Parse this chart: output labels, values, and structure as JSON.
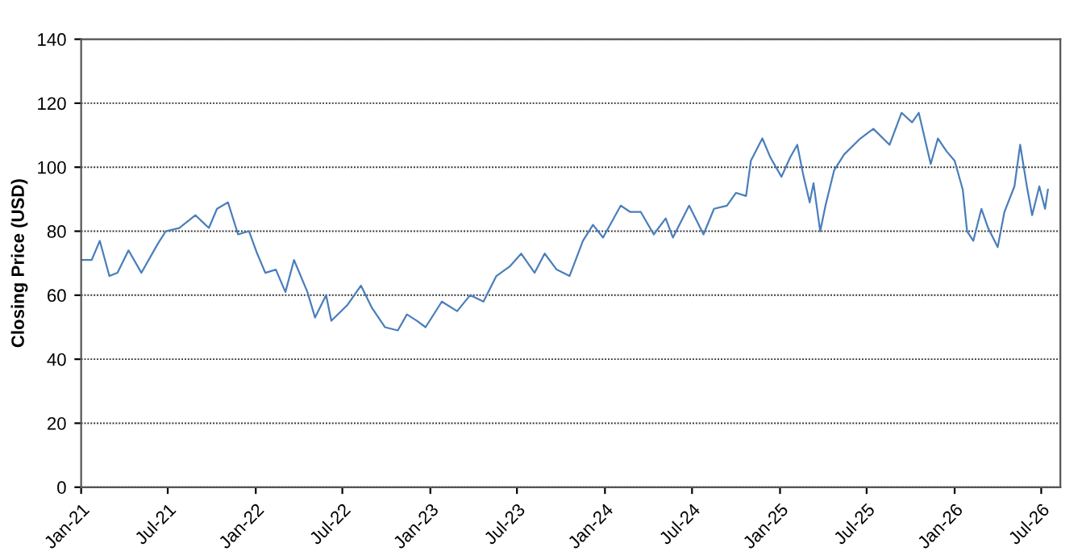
{
  "chart_data": {
    "type": "line",
    "ylabel": "Closing Price (USD)",
    "x": [
      "2021-01-01",
      "2021-01-23",
      "2021-02-09",
      "2021-03-01",
      "2021-03-18",
      "2021-04-10",
      "2021-05-07",
      "2021-06-10",
      "2021-06-27",
      "2021-07-25",
      "2021-08-28",
      "2021-09-25",
      "2021-10-12",
      "2021-11-04",
      "2021-11-25",
      "2021-12-18",
      "2022-01-04",
      "2022-01-21",
      "2022-02-12",
      "2022-03-04",
      "2022-03-22",
      "2022-04-19",
      "2022-05-05",
      "2022-05-28",
      "2022-06-08",
      "2022-07-12",
      "2022-08-09",
      "2022-09-01",
      "2022-09-28",
      "2022-10-25",
      "2022-11-13",
      "2022-12-04",
      "2022-12-22",
      "2023-01-25",
      "2023-02-26",
      "2023-03-25",
      "2023-04-22",
      "2023-05-19",
      "2023-06-16",
      "2023-07-10",
      "2023-08-07",
      "2023-08-28",
      "2023-09-22",
      "2023-10-19",
      "2023-11-16",
      "2023-12-07",
      "2023-12-28",
      "2024-02-03",
      "2024-02-23",
      "2024-03-16",
      "2024-04-12",
      "2024-05-07",
      "2024-05-22",
      "2024-06-25",
      "2024-07-25",
      "2024-08-16",
      "2024-09-12",
      "2024-10-01",
      "2024-10-22",
      "2024-11-01",
      "2024-11-25",
      "2024-12-12",
      "2025-01-04",
      "2025-01-22",
      "2025-02-06",
      "2025-02-18",
      "2025-03-04",
      "2025-03-12",
      "2025-03-26",
      "2025-04-06",
      "2025-04-24",
      "2025-05-15",
      "2025-06-18",
      "2025-07-15",
      "2025-08-18",
      "2025-09-12",
      "2025-10-04",
      "2025-10-18",
      "2025-11-12",
      "2025-11-27",
      "2025-12-15",
      "2026-01-01",
      "2026-01-18",
      "2026-01-27",
      "2026-02-09",
      "2026-02-26",
      "2026-03-12",
      "2026-04-01",
      "2026-04-15",
      "2026-05-06",
      "2026-05-18",
      "2026-06-01",
      "2026-06-12",
      "2026-06-27",
      "2026-07-09",
      "2026-07-15"
    ],
    "series": [
      {
        "color": "#4a7ebb",
        "values": [
          71,
          71,
          77,
          66,
          67,
          74,
          67,
          76,
          80,
          81,
          85,
          81,
          87,
          89,
          79,
          80,
          73,
          67,
          68,
          61,
          71,
          61,
          53,
          60,
          52,
          57,
          63,
          56,
          50,
          49,
          54,
          52,
          50,
          58,
          55,
          60,
          58,
          66,
          69,
          73,
          67,
          73,
          68,
          66,
          77,
          82,
          78,
          88,
          86,
          86,
          79,
          84,
          78,
          88,
          79,
          87,
          88,
          92,
          91,
          102,
          109,
          103,
          97,
          103,
          107,
          98,
          89,
          95,
          80,
          88,
          99,
          104,
          109,
          112,
          107,
          117,
          114,
          117,
          101,
          109,
          105,
          102,
          93,
          80,
          77,
          87,
          81,
          75,
          86,
          94,
          107,
          94,
          85,
          94,
          87,
          93
        ]
      }
    ],
    "xlim": [
      "2021-01-01",
      "2026-08-10"
    ],
    "xticks": [
      {
        "value": "2021-01-01",
        "label": "Jan-21"
      },
      {
        "value": "2021-07-01",
        "label": "Jul-21"
      },
      {
        "value": "2022-01-01",
        "label": "Jan-22"
      },
      {
        "value": "2022-07-01",
        "label": "Jul-22"
      },
      {
        "value": "2023-01-01",
        "label": "Jan-23"
      },
      {
        "value": "2023-07-01",
        "label": "Jul-23"
      },
      {
        "value": "2024-01-01",
        "label": "Jan-24"
      },
      {
        "value": "2024-07-01",
        "label": "Jul-24"
      },
      {
        "value": "2025-01-01",
        "label": "Jan-25"
      },
      {
        "value": "2025-07-01",
        "label": "Jul-25"
      },
      {
        "value": "2026-01-01",
        "label": "Jan-26"
      },
      {
        "value": "2026-07-01",
        "label": "Jul-26"
      }
    ],
    "ylim": [
      0,
      140
    ],
    "yticks": [
      0,
      20,
      40,
      60,
      80,
      100,
      120,
      140
    ],
    "grid": "y",
    "marker": "none",
    "line_style": "solid"
  }
}
